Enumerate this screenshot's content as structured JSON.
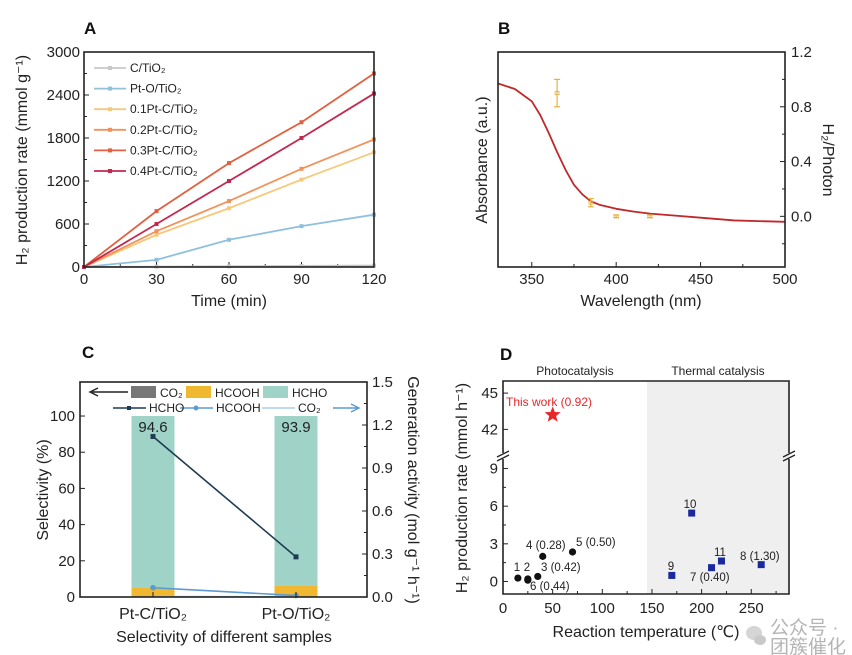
{
  "watermark": {
    "text": "公众号 · 团簇催化",
    "icon": "wechat-icon"
  },
  "chart_data": [
    {
      "panel": "A",
      "type": "line",
      "xlabel": "Time (min)",
      "ylabel": "H₂ production rate (mmol g⁻¹)",
      "xlim": [
        0,
        120
      ],
      "ylim": [
        0,
        3000
      ],
      "xticks": [
        0,
        30,
        60,
        90,
        120
      ],
      "yticks": [
        0,
        600,
        1200,
        1800,
        2400,
        3000
      ],
      "legend_position": "top-left",
      "x": [
        0,
        30,
        60,
        90,
        120
      ],
      "series": [
        {
          "name": "C/TiO₂",
          "color": "#c8c8c8",
          "values": [
            0,
            5,
            10,
            15,
            20
          ]
        },
        {
          "name": "Pt-O/TiO₂",
          "color": "#8fc1dc",
          "values": [
            0,
            100,
            380,
            570,
            730
          ]
        },
        {
          "name": "0.1Pt-C/TiO₂",
          "color": "#f6c97a",
          "values": [
            0,
            450,
            820,
            1220,
            1600
          ]
        },
        {
          "name": "0.2Pt-C/TiO₂",
          "color": "#f0925a",
          "values": [
            0,
            500,
            920,
            1370,
            1780
          ]
        },
        {
          "name": "0.3Pt-C/TiO₂",
          "color": "#e0603f",
          "values": [
            0,
            780,
            1450,
            2020,
            2700
          ]
        },
        {
          "name": "0.4Pt-C/TiO₂",
          "color": "#c3284e",
          "values": [
            0,
            600,
            1200,
            1800,
            2420
          ]
        }
      ]
    },
    {
      "panel": "B",
      "type": "line",
      "xlabel": "Wavelength (nm)",
      "ylabel": "Absorbance (a.u.)",
      "ylabel_right": "H₂/Photon",
      "xlim": [
        330,
        500
      ],
      "ylim_right": [
        -0.37,
        1.2
      ],
      "xticks": [
        350,
        400,
        450,
        500
      ],
      "yticks_right": [
        0.0,
        0.4,
        0.8,
        1.2
      ],
      "absorbance": {
        "color": "#c0282a",
        "x": [
          330,
          340,
          350,
          355,
          360,
          365,
          370,
          375,
          380,
          385,
          390,
          400,
          410,
          420,
          435,
          450,
          470,
          500
        ],
        "y": [
          0.97,
          0.93,
          0.84,
          0.74,
          0.61,
          0.47,
          0.34,
          0.23,
          0.16,
          0.11,
          0.085,
          0.055,
          0.035,
          0.02,
          0.005,
          -0.01,
          -0.03,
          -0.04
        ]
      },
      "h2_per_photon": {
        "color": "#e8b040",
        "x": [
          365,
          385,
          400,
          420
        ],
        "y": [
          0.9,
          0.1,
          0.0,
          0.0
        ],
        "err": [
          0.1,
          0.03,
          0.01,
          0.01
        ]
      }
    },
    {
      "panel": "C",
      "type": "bar",
      "xlabel": "Selectivity of different samples",
      "ylabel": "Selectivity (%)",
      "ylabel_right": "Generation activity (mol g⁻¹ h⁻¹)",
      "categories": [
        "Pt-C/TiO₂",
        "Pt-O/TiO₂"
      ],
      "ylim": [
        0,
        118.8
      ],
      "yticks": [
        0,
        20,
        40,
        60,
        80,
        100
      ],
      "ylim_right": [
        0,
        1.5
      ],
      "yticks_right": [
        0.0,
        0.3,
        0.6,
        0.9,
        1.2,
        1.5
      ],
      "stacked_bars": [
        {
          "name": "CO₂",
          "color": "#777777",
          "values": [
            0.4,
            0.4
          ]
        },
        {
          "name": "HCOOH",
          "color": "#f0b730",
          "values": [
            5.0,
            5.7
          ]
        },
        {
          "name": "HCHO",
          "color": "#9fd3c7",
          "values": [
            94.6,
            93.9
          ]
        }
      ],
      "bar_labels": [
        "94.6",
        "93.9"
      ],
      "lines": [
        {
          "name": "HCHO",
          "color": "#1f3b52",
          "values": [
            1.12,
            0.28
          ]
        },
        {
          "name": "HCOOH",
          "color": "#5b9bd5",
          "values": [
            0.065,
            0.01
          ]
        },
        {
          "name": "CO₂",
          "color": "#a9cde8",
          "values": [
            0.003,
            0.002
          ]
        }
      ]
    },
    {
      "panel": "D",
      "type": "scatter",
      "xlabel": "Reaction temperature (℃)",
      "ylabel": "H₂ production rate (mmol h⁻¹)",
      "xlim": [
        0,
        288
      ],
      "xticks": [
        0,
        50,
        100,
        150,
        200,
        250
      ],
      "ylim_lower": [
        -1,
        10
      ],
      "yticks_lower": [
        0,
        3,
        6,
        9
      ],
      "ylim_upper": [
        39.8,
        46
      ],
      "yticks_upper": [
        42,
        45
      ],
      "broken_y_axis": true,
      "regions": [
        {
          "label": "Photocatalysis",
          "range": [
            0,
            145
          ],
          "color": "#ffffff"
        },
        {
          "label": "Thermal catalysis",
          "range": [
            145,
            288
          ],
          "color": "#efefef"
        }
      ],
      "highlight": {
        "label": "This work (0.92)",
        "x": 50,
        "y": 43.2,
        "color": "#e8262a",
        "marker": "star"
      },
      "photocatalysis_points": {
        "color": "#111111",
        "marker": "circle",
        "points": [
          {
            "label": "1",
            "x": 15,
            "y": 0.27
          },
          {
            "label": "2",
            "x": 25,
            "y": 0.2
          },
          {
            "label": "3 (0.42)",
            "x": 35,
            "y": 0.4
          },
          {
            "label": "4 (0.28)",
            "x": 40,
            "y": 2.0
          },
          {
            "label": "5 (0.50)",
            "x": 70,
            "y": 2.35
          },
          {
            "label": "6 (0.44)",
            "x": 25,
            "y": 0.1
          }
        ]
      },
      "thermal_points": {
        "color": "#1a2a9c",
        "marker": "square",
        "points": [
          {
            "label": "7 (0.40)",
            "x": 210,
            "y": 1.1
          },
          {
            "label": "8 (1.30)",
            "x": 260,
            "y": 1.34
          },
          {
            "label": "9",
            "x": 170,
            "y": 0.48
          },
          {
            "label": "10",
            "x": 190,
            "y": 5.45
          },
          {
            "label": "11",
            "x": 220,
            "y": 1.63
          }
        ]
      }
    }
  ]
}
